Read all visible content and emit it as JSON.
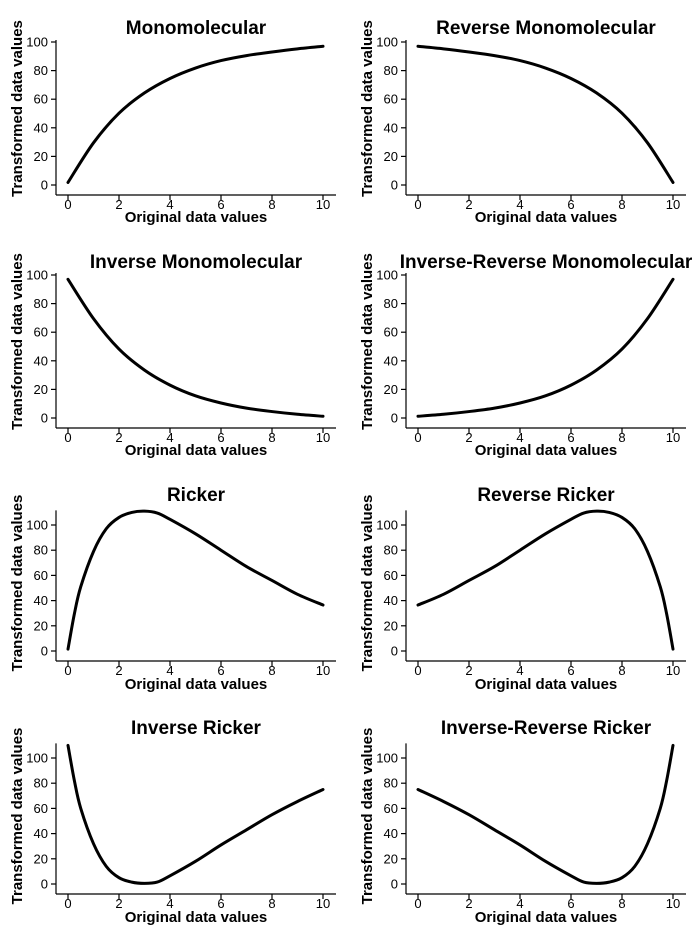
{
  "chart_data": [
    {
      "type": "line",
      "title": "Monomolecular",
      "xlabel": "Original data values",
      "ylabel": "Transformed data values",
      "xlim": [
        0,
        10
      ],
      "ylim": [
        0,
        100
      ],
      "xticks": [
        "0",
        "2",
        "4",
        "6",
        "8",
        "10"
      ],
      "yticks": [
        "0",
        "20",
        "40",
        "60",
        "80",
        "100"
      ],
      "x": [
        0,
        1,
        2,
        3,
        4,
        5,
        6,
        7,
        8,
        9,
        10
      ],
      "series": [
        {
          "values": [
            1.8,
            29.5,
            50.2,
            64.4,
            74.5,
            81.8,
            87.0,
            90.5,
            93.0,
            95.2,
            97.0
          ]
        }
      ]
    },
    {
      "type": "line",
      "title": "Reverse Monomolecular",
      "xlabel": "Original data values",
      "ylabel": "Transformed data values",
      "xlim": [
        0,
        10
      ],
      "ylim": [
        0,
        100
      ],
      "xticks": [
        "0",
        "2",
        "4",
        "6",
        "8",
        "10"
      ],
      "yticks": [
        "0",
        "20",
        "40",
        "60",
        "80",
        "100"
      ],
      "x": [
        0,
        1,
        2,
        3,
        4,
        5,
        6,
        7,
        8,
        9,
        10
      ],
      "series": [
        {
          "values": [
            97.0,
            95.2,
            93.0,
            90.5,
            87.0,
            81.8,
            74.5,
            64.4,
            50.2,
            29.5,
            1.8
          ]
        }
      ]
    },
    {
      "type": "line",
      "title": "Inverse Monomolecular",
      "xlabel": "Original data values",
      "ylabel": "Transformed data values",
      "xlim": [
        0,
        10
      ],
      "ylim": [
        0,
        100
      ],
      "xticks": [
        "0",
        "2",
        "4",
        "6",
        "8",
        "10"
      ],
      "yticks": [
        "0",
        "20",
        "40",
        "60",
        "80",
        "100"
      ],
      "x": [
        0,
        1,
        2,
        3,
        4,
        5,
        6,
        7,
        8,
        9,
        10
      ],
      "series": [
        {
          "values": [
            97.0,
            69.5,
            48.2,
            33.5,
            23.0,
            15.5,
            10.5,
            6.9,
            4.5,
            2.6,
            1.2
          ]
        }
      ]
    },
    {
      "type": "line",
      "title": "Inverse-Reverse Monomolecular",
      "xlabel": "Original data values",
      "ylabel": "Transformed data values",
      "xlim": [
        0,
        10
      ],
      "ylim": [
        0,
        100
      ],
      "xticks": [
        "0",
        "2",
        "4",
        "6",
        "8",
        "10"
      ],
      "yticks": [
        "0",
        "20",
        "40",
        "60",
        "80",
        "100"
      ],
      "x": [
        0,
        1,
        2,
        3,
        4,
        5,
        6,
        7,
        8,
        9,
        10
      ],
      "series": [
        {
          "values": [
            1.2,
            2.6,
            4.5,
            6.9,
            10.5,
            15.5,
            23.0,
            33.5,
            48.2,
            69.5,
            97.0
          ]
        }
      ]
    },
    {
      "type": "line",
      "title": "Ricker",
      "xlabel": "Original data values",
      "ylabel": "Transformed data values",
      "xlim": [
        0,
        10
      ],
      "ylim": [
        0,
        110
      ],
      "xticks": [
        "0",
        "2",
        "4",
        "6",
        "8",
        "10"
      ],
      "yticks": [
        "0",
        "20",
        "40",
        "60",
        "80",
        "100"
      ],
      "x": [
        0,
        0.25,
        0.5,
        1,
        1.5,
        2,
        2.5,
        3,
        3.5,
        4,
        5,
        6,
        7,
        8,
        9,
        10
      ],
      "series": [
        {
          "values": [
            1.5,
            29.5,
            51.0,
            79.0,
            97.0,
            106.0,
            110.0,
            111.0,
            109.5,
            104.5,
            93.0,
            80.0,
            67.0,
            56.0,
            45.0,
            36.5
          ]
        }
      ]
    },
    {
      "type": "line",
      "title": "Reverse Ricker",
      "xlabel": "Original data values",
      "ylabel": "Transformed data values",
      "xlim": [
        0,
        10
      ],
      "ylim": [
        0,
        110
      ],
      "xticks": [
        "0",
        "2",
        "4",
        "6",
        "8",
        "10"
      ],
      "yticks": [
        "0",
        "20",
        "40",
        "60",
        "80",
        "100"
      ],
      "x": [
        0,
        1,
        2,
        3,
        4,
        5,
        6,
        6.5,
        7,
        7.5,
        8,
        8.5,
        9,
        9.5,
        9.75,
        10
      ],
      "series": [
        {
          "values": [
            36.5,
            45.0,
            56.0,
            67.0,
            80.0,
            93.0,
            104.5,
            109.5,
            111.0,
            110.0,
            106.0,
            97.0,
            79.0,
            51.0,
            29.5,
            1.5
          ]
        }
      ]
    },
    {
      "type": "line",
      "title": "Inverse Ricker",
      "xlabel": "Original data values",
      "ylabel": "Transformed data values",
      "xlim": [
        0,
        10
      ],
      "ylim": [
        0,
        110
      ],
      "xticks": [
        "0",
        "2",
        "4",
        "6",
        "8",
        "10"
      ],
      "yticks": [
        "0",
        "20",
        "40",
        "60",
        "80",
        "100"
      ],
      "x": [
        0,
        0.25,
        0.5,
        1,
        1.5,
        2,
        2.5,
        3,
        3.5,
        4,
        5,
        6,
        7,
        8,
        9,
        10
      ],
      "series": [
        {
          "values": [
            110.0,
            82.0,
            60.0,
            32.0,
            14.0,
            5.0,
            1.5,
            0.5,
            1.5,
            6.5,
            18.0,
            31.0,
            43.0,
            55.0,
            65.5,
            75.0
          ]
        }
      ]
    },
    {
      "type": "line",
      "title": "Inverse-Reverse Ricker",
      "xlabel": "Original data values",
      "ylabel": "Transformed data values",
      "xlim": [
        0,
        10
      ],
      "ylim": [
        0,
        110
      ],
      "xticks": [
        "0",
        "2",
        "4",
        "6",
        "8",
        "10"
      ],
      "yticks": [
        "0",
        "20",
        "40",
        "60",
        "80",
        "100"
      ],
      "x": [
        0,
        1,
        2,
        3,
        4,
        5,
        6,
        6.5,
        7,
        7.5,
        8,
        8.5,
        9,
        9.5,
        9.75,
        10
      ],
      "series": [
        {
          "values": [
            75.0,
            65.5,
            55.0,
            43.0,
            31.0,
            18.0,
            6.5,
            1.5,
            0.5,
            1.5,
            5.0,
            14.0,
            32.0,
            60.0,
            82.0,
            110.0
          ]
        }
      ]
    }
  ]
}
